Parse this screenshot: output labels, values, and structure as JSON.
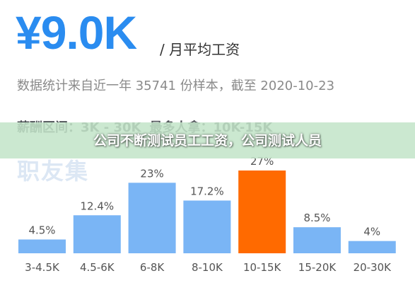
{
  "header": {
    "avg_salary": "¥9.0K",
    "avg_unit": "/ 月平均工资",
    "sample_note": "数据统计来自近一年 35741 份样本，截至 2020-10-23",
    "range_label": "薪酬区间：3K - 30K",
    "mode_label": "最多人拿：10K-15K",
    "section_label": "职友集"
  },
  "banner": {
    "text": "公司不断测试员工工资，公司测试人员"
  },
  "colors": {
    "accent": "#2a8cf0",
    "bar": "#7ab5f5",
    "highlight": "#ff6a00"
  },
  "chart_data": {
    "type": "bar",
    "categories": [
      "3-4.5K",
      "4.5-6K",
      "6-8K",
      "8-10K",
      "10-15K",
      "15-20K",
      "20-30K"
    ],
    "values": [
      4.5,
      12.4,
      23,
      17.2,
      27,
      8.5,
      4
    ],
    "value_labels": [
      "4.5%",
      "12.4%",
      "23%",
      "17.2%",
      "27%",
      "8.5%",
      "4%"
    ],
    "unit": "%",
    "highlight_index": 4,
    "ylim": [
      0,
      27
    ],
    "grid": false,
    "title": "",
    "xlabel": "",
    "ylabel": ""
  }
}
